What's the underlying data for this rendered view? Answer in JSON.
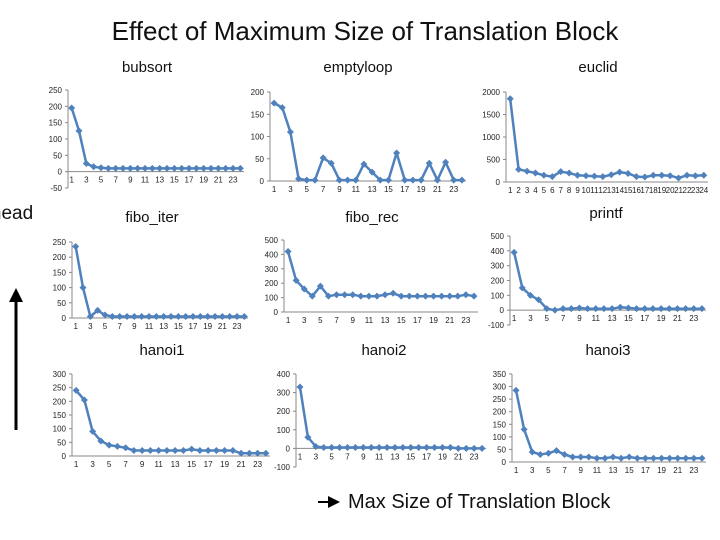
{
  "title": "Effect of Maximum Size of Translation Block",
  "y_axis_label": "erhead",
  "x_axis_label": "Max  Size  of Translation Block",
  "colors": {
    "series": "#4f81bd",
    "marker": "#4f81bd",
    "axis": "#888888"
  },
  "chart_data": [
    {
      "type": "line",
      "title": "bubsort",
      "x_ticks": [
        "1",
        "3",
        "5",
        "7",
        "9",
        "11",
        "13",
        "15",
        "17",
        "19",
        "21",
        "23"
      ],
      "y_ticks": [
        "-50",
        "0",
        "50",
        "100",
        "150",
        "200",
        "250"
      ],
      "ylim": [
        -50,
        250
      ],
      "values": [
        195,
        125,
        25,
        15,
        12,
        10,
        10,
        10,
        10,
        10,
        10,
        10,
        10,
        10,
        10,
        10,
        10,
        10,
        10,
        10,
        10,
        10,
        10,
        10
      ]
    },
    {
      "type": "line",
      "title": "emptyloop",
      "x_ticks": [
        "1",
        "3",
        "5",
        "7",
        "9",
        "11",
        "13",
        "15",
        "17",
        "19",
        "21",
        "23"
      ],
      "y_ticks": [
        "0",
        "50",
        "100",
        "150",
        "200"
      ],
      "ylim": [
        0,
        200
      ],
      "values": [
        175,
        165,
        110,
        5,
        2,
        2,
        52,
        40,
        2,
        2,
        2,
        38,
        20,
        2,
        2,
        63,
        2,
        2,
        2,
        40,
        2,
        42,
        2,
        2
      ]
    },
    {
      "type": "line",
      "title": "euclid",
      "x_ticks": [
        "1",
        "2",
        "3",
        "4",
        "5",
        "6",
        "7",
        "8",
        "9",
        "10",
        "11",
        "12",
        "13",
        "14",
        "15",
        "16",
        "17",
        "18",
        "19",
        "20",
        "21",
        "22",
        "23",
        "24"
      ],
      "y_ticks": [
        "0",
        "500",
        "1000",
        "1500",
        "2000"
      ],
      "ylim": [
        0,
        2000
      ],
      "values": [
        1850,
        280,
        240,
        200,
        150,
        120,
        230,
        200,
        150,
        140,
        130,
        120,
        160,
        220,
        190,
        120,
        110,
        150,
        150,
        140,
        90,
        150,
        140,
        150
      ]
    },
    {
      "type": "line",
      "title": "fibo_iter",
      "x_ticks": [
        "1",
        "3",
        "5",
        "7",
        "9",
        "11",
        "13",
        "15",
        "17",
        "19",
        "21",
        "23"
      ],
      "y_ticks": [
        "0",
        "50",
        "100",
        "150",
        "200",
        "250"
      ],
      "ylim": [
        0,
        250
      ],
      "values": [
        235,
        100,
        5,
        25,
        10,
        5,
        5,
        5,
        5,
        5,
        5,
        5,
        5,
        5,
        5,
        5,
        5,
        5,
        5,
        5,
        5,
        5,
        5,
        5
      ]
    },
    {
      "type": "line",
      "title": "fibo_rec",
      "x_ticks": [
        "1",
        "3",
        "5",
        "7",
        "9",
        "11",
        "13",
        "15",
        "17",
        "19",
        "21",
        "23"
      ],
      "y_ticks": [
        "0",
        "100",
        "200",
        "300",
        "400",
        "500"
      ],
      "ylim": [
        0,
        500
      ],
      "values": [
        420,
        220,
        160,
        110,
        180,
        110,
        120,
        120,
        120,
        110,
        110,
        110,
        120,
        130,
        110,
        110,
        110,
        110,
        110,
        110,
        110,
        110,
        120,
        110
      ]
    },
    {
      "type": "line",
      "title": "printf",
      "x_ticks": [
        "1",
        "3",
        "5",
        "7",
        "9",
        "11",
        "13",
        "15",
        "17",
        "19",
        "21",
        "23"
      ],
      "y_ticks": [
        "-100",
        "0",
        "100",
        "200",
        "300",
        "400",
        "500"
      ],
      "ylim": [
        -100,
        500
      ],
      "values": [
        390,
        150,
        100,
        70,
        10,
        0,
        10,
        10,
        15,
        10,
        10,
        10,
        10,
        20,
        15,
        10,
        10,
        10,
        10,
        10,
        10,
        10,
        10,
        10
      ]
    },
    {
      "type": "line",
      "title": "hanoi1",
      "x_ticks": [
        "1",
        "3",
        "5",
        "7",
        "9",
        "11",
        "13",
        "15",
        "17",
        "19",
        "21",
        "23"
      ],
      "y_ticks": [
        "0",
        "50",
        "100",
        "150",
        "200",
        "250",
        "300"
      ],
      "ylim": [
        0,
        300
      ],
      "values": [
        240,
        205,
        90,
        55,
        40,
        35,
        30,
        20,
        20,
        20,
        20,
        20,
        20,
        20,
        25,
        20,
        20,
        20,
        20,
        20,
        10,
        10,
        10,
        10
      ]
    },
    {
      "type": "line",
      "title": "hanoi2",
      "x_ticks": [
        "1",
        "3",
        "5",
        "7",
        "9",
        "11",
        "13",
        "15",
        "17",
        "19",
        "21",
        "23"
      ],
      "y_ticks": [
        "-100",
        "0",
        "100",
        "200",
        "300",
        "400"
      ],
      "ylim": [
        -100,
        400
      ],
      "values": [
        330,
        60,
        10,
        5,
        5,
        5,
        5,
        5,
        5,
        5,
        5,
        5,
        5,
        5,
        5,
        5,
        5,
        5,
        5,
        5,
        0,
        0,
        0,
        0
      ]
    },
    {
      "type": "line",
      "title": "hanoi3",
      "x_ticks": [
        "1",
        "3",
        "5",
        "7",
        "9",
        "11",
        "13",
        "15",
        "17",
        "19",
        "21",
        "23"
      ],
      "y_ticks": [
        "0",
        "50",
        "100",
        "150",
        "200",
        "250",
        "300",
        "350"
      ],
      "ylim": [
        0,
        350
      ],
      "values": [
        285,
        130,
        40,
        30,
        35,
        45,
        30,
        20,
        20,
        20,
        15,
        15,
        20,
        15,
        20,
        15,
        15,
        15,
        15,
        15,
        15,
        15,
        15,
        15
      ]
    }
  ]
}
